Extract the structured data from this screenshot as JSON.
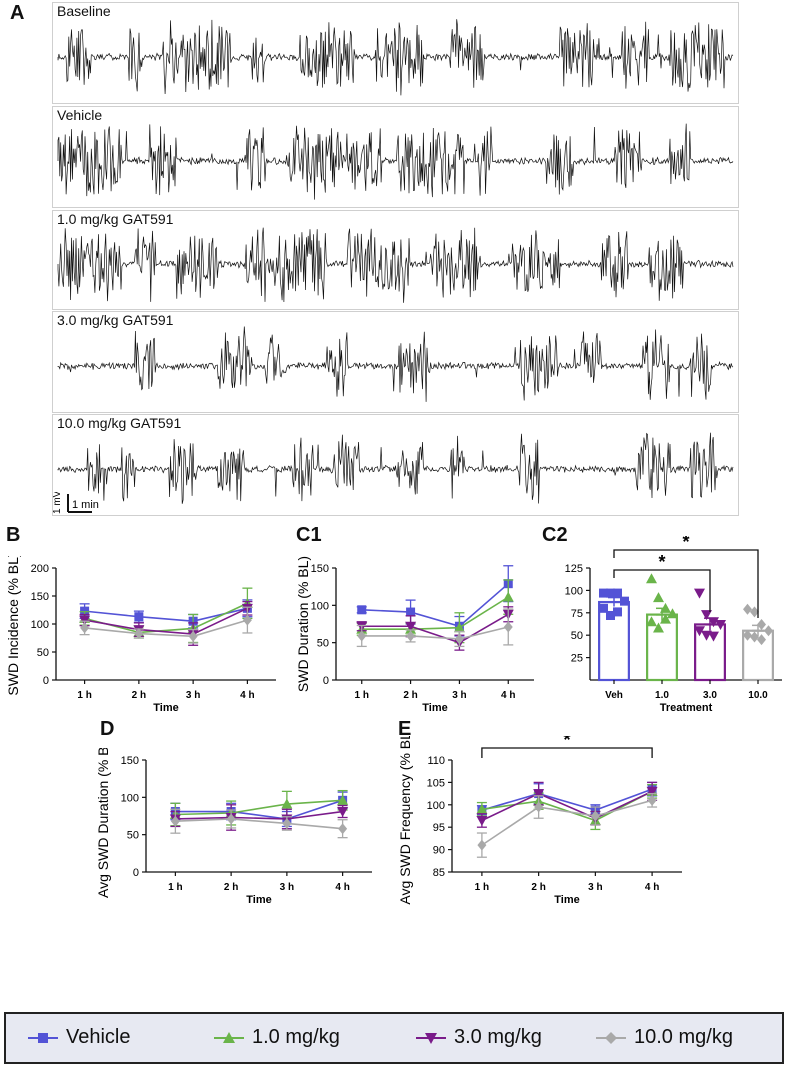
{
  "panels": {
    "A": "A",
    "B": "B",
    "C1": "C1",
    "C2": "C2",
    "D": "D",
    "E": "E"
  },
  "traces": [
    {
      "label": "Baseline"
    },
    {
      "label": "Vehicle"
    },
    {
      "label": "1.0 mg/kg GAT591"
    },
    {
      "label": "3.0 mg/kg GAT591"
    },
    {
      "label": "10.0 mg/kg GAT591"
    }
  ],
  "scalebar": {
    "v_label": "1 mV",
    "h_label": "1 min"
  },
  "colors": {
    "vehicle": "#5353d6",
    "g1": "#6ab44a",
    "g3": "#7a1b8a",
    "g10": "#a9a9a9"
  },
  "legend": [
    {
      "label": "Vehicle",
      "color": "#5353d6",
      "marker": "square"
    },
    {
      "label": "1.0 mg/kg",
      "color": "#6ab44a",
      "marker": "triangle-up"
    },
    {
      "label": "3.0 mg/kg",
      "color": "#7a1b8a",
      "marker": "triangle-down"
    },
    {
      "label": "10.0 mg/kg",
      "color": "#a9a9a9",
      "marker": "diamond"
    }
  ],
  "chart_data": [
    {
      "id": "B",
      "type": "line",
      "ylabel": "SWD Incidence (% BL)",
      "xlabel": "Time",
      "categories": [
        "1 h",
        "2 h",
        "3 h",
        "4 h"
      ],
      "ylim": [
        0,
        200
      ],
      "yticks": [
        0,
        50,
        100,
        150,
        200
      ],
      "series": [
        {
          "name": "Vehicle",
          "values": [
            123,
            113,
            105,
            128
          ],
          "err": [
            13,
            10,
            12,
            15
          ]
        },
        {
          "name": "1.0 mg/kg",
          "values": [
            110,
            85,
            92,
            137
          ],
          "err": [
            12,
            10,
            25,
            27
          ]
        },
        {
          "name": "3.0 mg/kg",
          "values": [
            107,
            90,
            82,
            128
          ],
          "err": [
            10,
            12,
            20,
            12
          ]
        },
        {
          "name": "10.0 mg/kg",
          "values": [
            93,
            83,
            78,
            107
          ],
          "err": [
            12,
            8,
            12,
            23
          ]
        }
      ]
    },
    {
      "id": "C1",
      "type": "line",
      "ylabel": "SWD Duration (% BL)",
      "xlabel": "Time",
      "categories": [
        "1 h",
        "2 h",
        "3 h",
        "4 h"
      ],
      "ylim": [
        0,
        150
      ],
      "yticks": [
        0,
        50,
        100,
        150
      ],
      "series": [
        {
          "name": "Vehicle",
          "values": [
            94,
            91,
            72,
            129
          ],
          "err": [
            4,
            16,
            13,
            24
          ]
        },
        {
          "name": "1.0 mg/kg",
          "values": [
            68,
            68,
            70,
            111
          ],
          "err": [
            8,
            8,
            20,
            23
          ]
        },
        {
          "name": "3.0 mg/kg",
          "values": [
            72,
            72,
            50,
            88
          ],
          "err": [
            6,
            14,
            10,
            10
          ]
        },
        {
          "name": "10.0 mg/kg",
          "values": [
            59,
            59,
            55,
            71
          ],
          "err": [
            14,
            8,
            10,
            24
          ]
        }
      ]
    },
    {
      "id": "C2",
      "type": "bar",
      "xlabel": "Treatment",
      "categories": [
        "Veh",
        "1.0",
        "3.0",
        "10.0"
      ],
      "values": [
        87,
        73,
        62,
        55
      ],
      "err": [
        5,
        7,
        7,
        6
      ],
      "points": [
        [
          97,
          97,
          97,
          88,
          80,
          72,
          76
        ],
        [
          113,
          92,
          80,
          74,
          65,
          58,
          68
        ],
        [
          97,
          73,
          65,
          62,
          55,
          50,
          49
        ],
        [
          79,
          76,
          62,
          55,
          50,
          48,
          45
        ]
      ],
      "ylim": [
        0,
        125
      ],
      "yticks": [
        25,
        50,
        75,
        100,
        125
      ],
      "significance": [
        {
          "from": "Veh",
          "to": "3.0",
          "label": "*"
        },
        {
          "from": "Veh",
          "to": "10.0",
          "label": "*"
        }
      ]
    },
    {
      "id": "D",
      "type": "line",
      "ylabel": "Avg SWD Duration (% BL)",
      "xlabel": "Time",
      "categories": [
        "1 h",
        "2 h",
        "3 h",
        "4 h"
      ],
      "ylim": [
        0,
        150
      ],
      "yticks": [
        0,
        50,
        100,
        150
      ],
      "series": [
        {
          "name": "Vehicle",
          "values": [
            81,
            81,
            71,
            96
          ],
          "err": [
            11,
            11,
            10,
            11
          ]
        },
        {
          "name": "1.0 mg/kg",
          "values": [
            77,
            79,
            91,
            96
          ],
          "err": [
            15,
            16,
            17,
            13
          ]
        },
        {
          "name": "3.0 mg/kg",
          "values": [
            71,
            73,
            71,
            81
          ],
          "err": [
            10,
            17,
            13,
            8
          ]
        },
        {
          "name": "10.0 mg/kg",
          "values": [
            68,
            71,
            65,
            58
          ],
          "err": [
            16,
            12,
            9,
            12
          ]
        }
      ]
    },
    {
      "id": "E",
      "type": "line",
      "ylabel": "Avg SWD Frequency (% BL)",
      "xlabel": "Time",
      "categories": [
        "1 h",
        "2 h",
        "3 h",
        "4 h"
      ],
      "ylim": [
        85,
        110
      ],
      "yticks": [
        85,
        90,
        95,
        100,
        105,
        110
      ],
      "series": [
        {
          "name": "Vehicle",
          "values": [
            98.8,
            102.5,
            98.8,
            103.5
          ],
          "err": [
            1.0,
            2.2,
            1.2,
            1.5
          ]
        },
        {
          "name": "1.0 mg/kg",
          "values": [
            99.0,
            100.8,
            96.5,
            103.0
          ],
          "err": [
            1.5,
            1.8,
            2.0,
            1.5
          ]
        },
        {
          "name": "3.0 mg/kg",
          "values": [
            96.5,
            102.5,
            97.0,
            103.0
          ],
          "err": [
            1.5,
            2.5,
            1.5,
            2.0
          ]
        },
        {
          "name": "10.0 mg/kg",
          "values": [
            91.0,
            99.5,
            97.5,
            101.0
          ],
          "err": [
            2.7,
            2.5,
            2.0,
            1.5
          ]
        }
      ],
      "significance": [
        {
          "from": "1 h",
          "to": "4 h",
          "label": "*"
        }
      ]
    }
  ]
}
